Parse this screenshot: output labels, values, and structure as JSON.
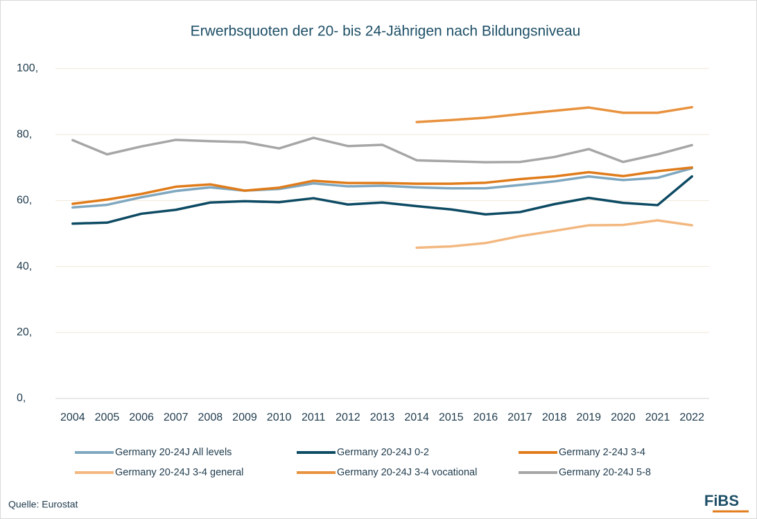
{
  "chart_data": {
    "type": "line",
    "title": "Erwerbsquoten der 20- bis 24-Jährigen nach Bildungsniveau",
    "categories": [
      "2004",
      "2005",
      "2006",
      "2007",
      "2008",
      "2009",
      "2010",
      "2011",
      "2012",
      "2013",
      "2014",
      "2015",
      "2016",
      "2017",
      "2018",
      "2019",
      "2020",
      "2021",
      "2022"
    ],
    "series": [
      {
        "name": "Germany 20-24J All levels",
        "color": "#7fa7bf",
        "values": [
          57.9,
          58.7,
          61.0,
          62.9,
          64.0,
          63.0,
          63.5,
          65.2,
          64.3,
          64.5,
          64.0,
          63.7,
          63.7,
          64.7,
          65.8,
          67.3,
          66.2,
          66.9,
          69.8
        ]
      },
      {
        "name": "Germany 20-24J 0-2",
        "color": "#0d4a63",
        "values": [
          53.0,
          53.3,
          56.0,
          57.2,
          59.4,
          59.8,
          59.5,
          60.7,
          58.8,
          59.4,
          58.3,
          57.3,
          55.8,
          56.5,
          58.9,
          60.8,
          59.3,
          58.6,
          67.3
        ]
      },
      {
        "name": "Germany 2-24J 3-4",
        "color": "#e07b1a",
        "values": [
          59.0,
          60.3,
          62.0,
          64.2,
          64.9,
          63.0,
          63.9,
          66.0,
          65.3,
          65.3,
          65.1,
          65.1,
          65.4,
          66.5,
          67.3,
          68.6,
          67.4,
          68.9,
          70.0
        ]
      },
      {
        "name": "Germany 20-24J 3-4 general",
        "color": "#f2b880",
        "values": [
          null,
          null,
          null,
          null,
          null,
          null,
          null,
          null,
          null,
          null,
          45.7,
          46.1,
          47.1,
          49.2,
          50.8,
          52.5,
          52.6,
          54.0,
          52.5
        ]
      },
      {
        "name": "Germany 20-24J 3-4 vocational",
        "color": "#e8923e",
        "values": [
          null,
          null,
          null,
          null,
          null,
          null,
          null,
          null,
          null,
          null,
          83.8,
          84.4,
          85.1,
          86.2,
          87.2,
          88.2,
          86.6,
          86.6,
          88.3
        ]
      },
      {
        "name": "Germany 20-24J 5-8",
        "color": "#a6a6a6",
        "values": [
          78.3,
          74.0,
          76.4,
          78.4,
          78.0,
          77.7,
          75.8,
          79.0,
          76.5,
          76.9,
          72.2,
          71.9,
          71.6,
          71.7,
          73.2,
          75.6,
          71.7,
          74.0,
          76.8
        ]
      }
    ],
    "ylim": [
      0,
      100
    ],
    "yticks": [
      {
        "value": 0,
        "label": "0,"
      },
      {
        "value": 20,
        "label": "20,"
      },
      {
        "value": 40,
        "label": "40,"
      },
      {
        "value": 60,
        "label": "60,"
      },
      {
        "value": 80,
        "label": "80,"
      },
      {
        "value": 100,
        "label": "100,"
      }
    ],
    "grid": true,
    "source": "Quelle: Eurostat",
    "logo": "FiBS"
  }
}
